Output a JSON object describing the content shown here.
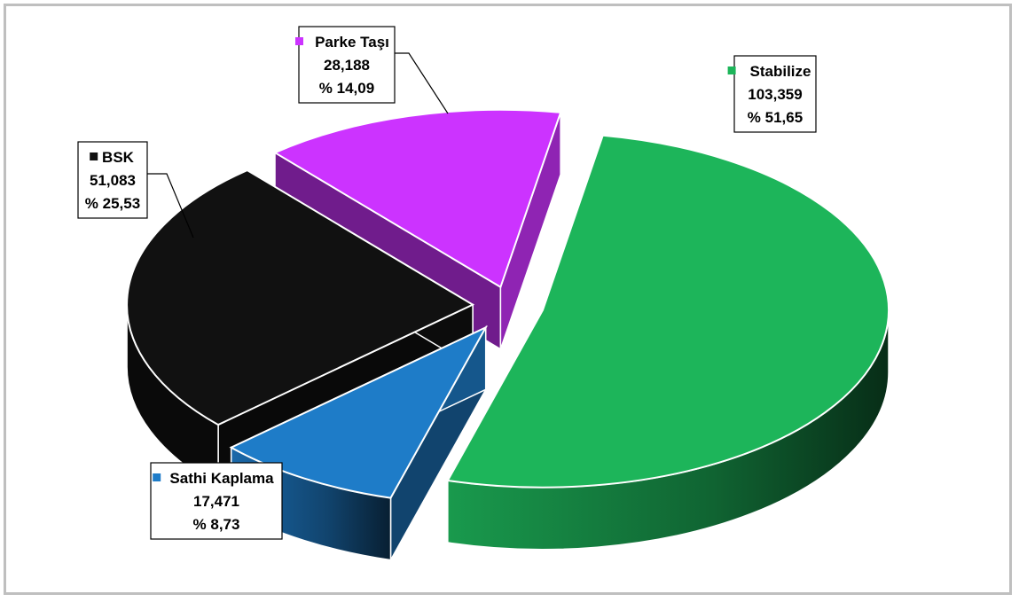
{
  "chart_data": {
    "type": "pie",
    "title": "",
    "slices": [
      {
        "label": "Stabilize",
        "value": 103359,
        "value_text": "103,359",
        "percent": 51.65,
        "percent_text": "% 51,65",
        "color": "#1db55a"
      },
      {
        "label": "Sathi Kaplama",
        "value": 17471,
        "value_text": "17,471",
        "percent": 8.73,
        "percent_text": "% 8,73",
        "color": "#1e7cc8"
      },
      {
        "label": "BSK",
        "value": 51083,
        "value_text": "51,083",
        "percent": 25.53,
        "percent_text": "% 25,53",
        "color": "#111111"
      },
      {
        "label": "Parke Taşı",
        "value": 28188,
        "value_text": "28,188",
        "percent": 14.09,
        "percent_text": "% 14,09",
        "color": "#cc33ff"
      }
    ],
    "style": "3d-exploded",
    "legend": "none"
  }
}
